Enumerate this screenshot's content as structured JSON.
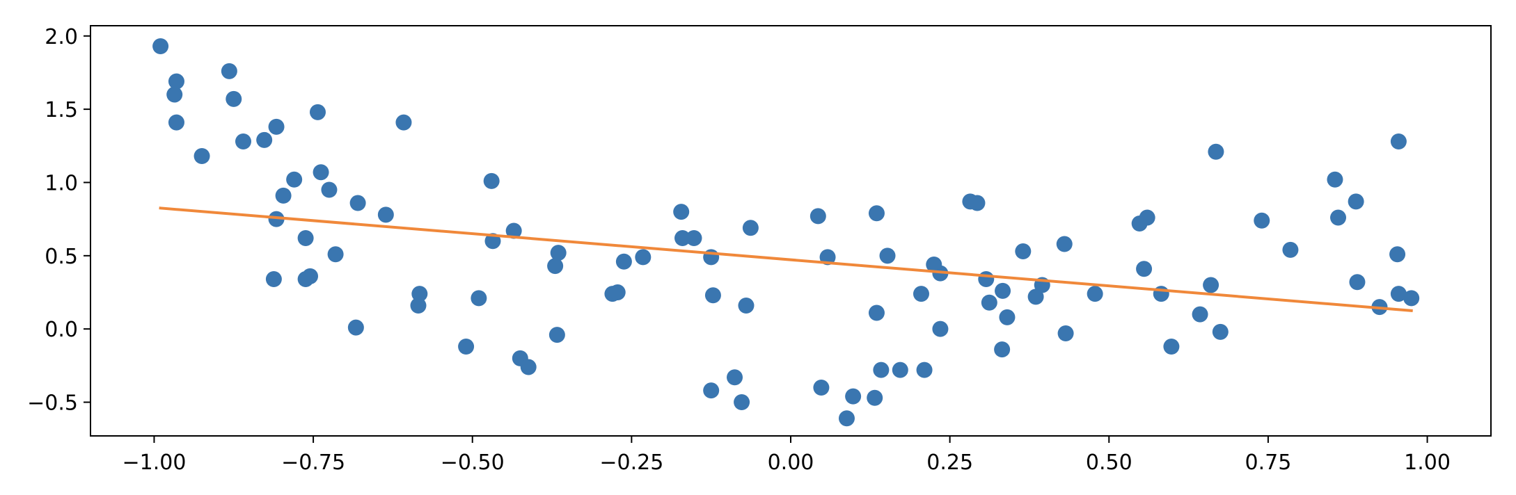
{
  "chart_data": {
    "type": "scatter",
    "title": "",
    "xlabel": "",
    "ylabel": "",
    "xlim": [
      -1.1,
      1.1
    ],
    "ylim": [
      -0.73,
      2.07
    ],
    "grid": false,
    "x_ticks": [
      {
        "value": -1.0,
        "label": "−1.00"
      },
      {
        "value": -0.75,
        "label": "−0.75"
      },
      {
        "value": -0.5,
        "label": "−0.50"
      },
      {
        "value": -0.25,
        "label": "−0.25"
      },
      {
        "value": 0.0,
        "label": "0.00"
      },
      {
        "value": 0.25,
        "label": "0.25"
      },
      {
        "value": 0.5,
        "label": "0.50"
      },
      {
        "value": 0.75,
        "label": "0.75"
      },
      {
        "value": 1.0,
        "label": "1.00"
      }
    ],
    "y_ticks": [
      {
        "value": -0.5,
        "label": "−0.5"
      },
      {
        "value": 0.0,
        "label": "0.0"
      },
      {
        "value": 0.5,
        "label": "0.5"
      },
      {
        "value": 1.0,
        "label": "1.0"
      },
      {
        "value": 1.5,
        "label": "1.5"
      },
      {
        "value": 2.0,
        "label": "2.0"
      }
    ],
    "series": [
      {
        "kind": "scatter",
        "color": "#3a76b0",
        "points": [
          [
            -0.99,
            1.93
          ],
          [
            -0.965,
            1.69
          ],
          [
            -0.968,
            1.6
          ],
          [
            -0.965,
            1.41
          ],
          [
            -0.925,
            1.18
          ],
          [
            -0.882,
            1.76
          ],
          [
            -0.875,
            1.57
          ],
          [
            -0.86,
            1.28
          ],
          [
            -0.827,
            1.29
          ],
          [
            -0.808,
            1.38
          ],
          [
            -0.797,
            0.91
          ],
          [
            -0.78,
            1.02
          ],
          [
            -0.808,
            0.75
          ],
          [
            -0.812,
            0.34
          ],
          [
            -0.762,
            0.62
          ],
          [
            -0.755,
            0.36
          ],
          [
            -0.762,
            0.34
          ],
          [
            -0.743,
            1.48
          ],
          [
            -0.738,
            1.07
          ],
          [
            -0.725,
            0.95
          ],
          [
            -0.715,
            0.51
          ],
          [
            -0.68,
            0.86
          ],
          [
            -0.683,
            0.01
          ],
          [
            -0.636,
            0.78
          ],
          [
            -0.608,
            1.41
          ],
          [
            -0.583,
            0.24
          ],
          [
            -0.585,
            0.16
          ],
          [
            -0.51,
            -0.12
          ],
          [
            -0.49,
            0.21
          ],
          [
            -0.47,
            1.01
          ],
          [
            -0.468,
            0.6
          ],
          [
            -0.435,
            0.67
          ],
          [
            -0.425,
            -0.2
          ],
          [
            -0.412,
            -0.26
          ],
          [
            -0.37,
            0.43
          ],
          [
            -0.365,
            0.52
          ],
          [
            -0.367,
            -0.04
          ],
          [
            -0.28,
            0.24
          ],
          [
            -0.272,
            0.25
          ],
          [
            -0.262,
            0.46
          ],
          [
            -0.232,
            0.49
          ],
          [
            -0.172,
            0.8
          ],
          [
            -0.17,
            0.62
          ],
          [
            -0.152,
            0.62
          ],
          [
            -0.125,
            0.49
          ],
          [
            -0.122,
            0.23
          ],
          [
            -0.125,
            -0.42
          ],
          [
            -0.088,
            -0.33
          ],
          [
            -0.077,
            -0.5
          ],
          [
            -0.07,
            0.16
          ],
          [
            -0.063,
            0.69
          ],
          [
            0.043,
            0.77
          ],
          [
            0.048,
            -0.4
          ],
          [
            0.058,
            0.49
          ],
          [
            0.088,
            -0.61
          ],
          [
            0.098,
            -0.46
          ],
          [
            0.135,
            0.79
          ],
          [
            0.135,
            0.11
          ],
          [
            0.132,
            -0.47
          ],
          [
            0.142,
            -0.28
          ],
          [
            0.152,
            0.5
          ],
          [
            0.172,
            -0.28
          ],
          [
            0.205,
            0.24
          ],
          [
            0.21,
            -0.28
          ],
          [
            0.225,
            0.44
          ],
          [
            0.235,
            0.38
          ],
          [
            0.235,
            0.0
          ],
          [
            0.282,
            0.87
          ],
          [
            0.293,
            0.86
          ],
          [
            0.307,
            0.34
          ],
          [
            0.312,
            0.18
          ],
          [
            0.333,
            0.26
          ],
          [
            0.332,
            -0.14
          ],
          [
            0.34,
            0.08
          ],
          [
            0.365,
            0.53
          ],
          [
            0.385,
            0.22
          ],
          [
            0.395,
            0.3
          ],
          [
            0.43,
            0.58
          ],
          [
            0.432,
            -0.03
          ],
          [
            0.478,
            0.24
          ],
          [
            0.548,
            0.72
          ],
          [
            0.56,
            0.76
          ],
          [
            0.555,
            0.41
          ],
          [
            0.582,
            0.24
          ],
          [
            0.598,
            -0.12
          ],
          [
            0.643,
            0.1
          ],
          [
            0.66,
            0.3
          ],
          [
            0.668,
            1.21
          ],
          [
            0.675,
            -0.02
          ],
          [
            0.74,
            0.74
          ],
          [
            0.785,
            0.54
          ],
          [
            0.855,
            1.02
          ],
          [
            0.86,
            0.76
          ],
          [
            0.888,
            0.87
          ],
          [
            0.89,
            0.32
          ],
          [
            0.925,
            0.15
          ],
          [
            0.955,
            1.28
          ],
          [
            0.953,
            0.51
          ],
          [
            0.955,
            0.24
          ],
          [
            0.975,
            0.21
          ]
        ]
      },
      {
        "kind": "line",
        "color": "#f0883a",
        "points": [
          [
            -0.99,
            0.825
          ],
          [
            0.975,
            0.125
          ]
        ]
      }
    ]
  }
}
